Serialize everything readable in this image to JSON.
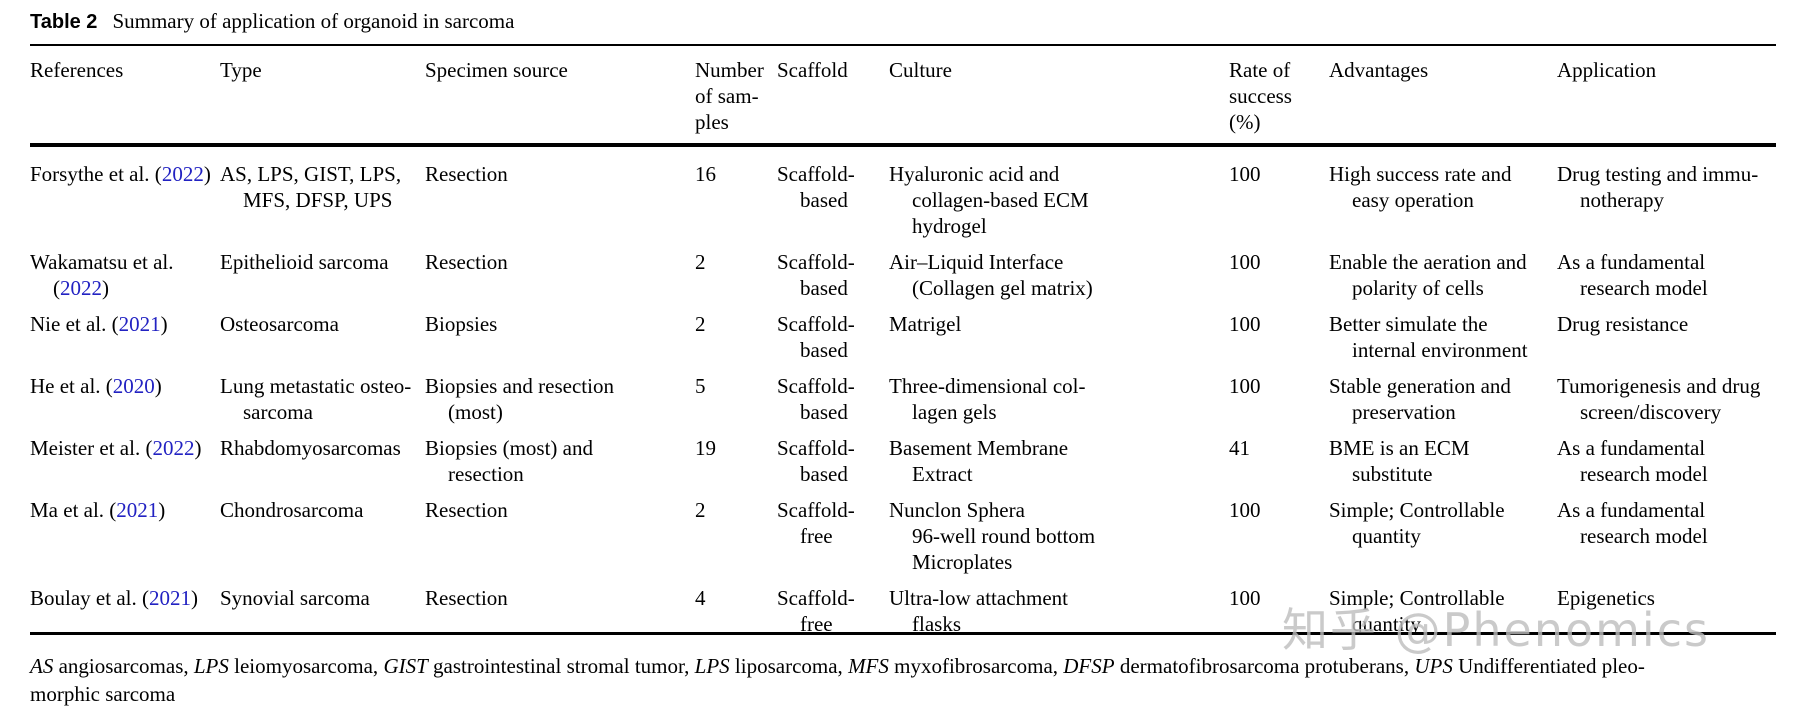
{
  "caption": {
    "label": "Table 2",
    "text": "Summary of application of organoid in sarcoma"
  },
  "colors": {
    "link_blue": "#2222c2",
    "text_black": "#000000",
    "watermark_gray": "#bdbdbd"
  },
  "columns": [
    "References",
    "Type",
    "Specimen source",
    "Number\nof sam-\nples",
    "Scaffold",
    "Culture",
    "Rate of\nsuccess\n(%)",
    "Advantages",
    "Application"
  ],
  "rows": [
    {
      "reference": {
        "before": "Forsythe et al. (",
        "year": "2022",
        "after": ")"
      },
      "type": "AS, LPS, GIST, LPS,\nMFS, DFSP, UPS",
      "specimen_source": "Resection",
      "number_of_samples": "16",
      "scaffold": "Scaffold-based",
      "culture": "Hyaluronic acid and\ncollagen-based ECM\nhydrogel",
      "rate_of_success": "100",
      "advantages": "High success rate and\neasy operation",
      "application": "Drug testing and immu-\nnotherapy"
    },
    {
      "reference": {
        "before": "Wakamatsu et al.\n(",
        "year": "2022",
        "after": ")"
      },
      "type": "Epithelioid sarcoma",
      "specimen_source": "Resection",
      "number_of_samples": "2",
      "scaffold": "Scaffold-based",
      "culture": "Air–Liquid Interface\n(Collagen gel matrix)",
      "rate_of_success": "100",
      "advantages": "Enable the aeration and\npolarity of cells",
      "application": "As a fundamental\nresearch model"
    },
    {
      "reference": {
        "before": "Nie et al. (",
        "year": "2021",
        "after": ")"
      },
      "type": "Osteosarcoma",
      "specimen_source": "Biopsies",
      "number_of_samples": "2",
      "scaffold": "Scaffold-based",
      "culture": "Matrigel",
      "rate_of_success": "100",
      "advantages": "Better simulate the\ninternal environment",
      "application": "Drug resistance"
    },
    {
      "reference": {
        "before": "He et al. (",
        "year": "2020",
        "after": ")"
      },
      "type": "Lung metastatic osteo-\nsarcoma",
      "specimen_source": "Biopsies and resection\n(most)",
      "number_of_samples": "5",
      "scaffold": "Scaffold-based",
      "culture": "Three-dimensional col-\nlagen gels",
      "rate_of_success": "100",
      "advantages": "Stable generation and\npreservation",
      "application": "Tumorigenesis and drug\nscreen/discovery"
    },
    {
      "reference": {
        "before": "Meister et al. (",
        "year": "2022",
        "after": ")"
      },
      "type": "Rhabdomyosarcomas",
      "specimen_source": "Biopsies (most) and\nresection",
      "number_of_samples": "19",
      "scaffold": "Scaffold-based",
      "culture": "Basement Membrane\nExtract",
      "rate_of_success": "41",
      "advantages": "BME is an ECM\nsubstitute",
      "application": "As a fundamental\nresearch model"
    },
    {
      "reference": {
        "before": "Ma et al. (",
        "year": "2021",
        "after": ")"
      },
      "type": "Chondrosarcoma",
      "specimen_source": "Resection",
      "number_of_samples": "2",
      "scaffold": "Scaffold-free",
      "culture": "Nunclon Sphera\n96-well round bottom\nMicroplates",
      "rate_of_success": "100",
      "advantages": "Simple; Controllable\nquantity",
      "application": "As a fundamental\nresearch model"
    },
    {
      "reference": {
        "before": "Boulay et al. (",
        "year": "2021",
        "after": ")"
      },
      "type": "Synovial sarcoma",
      "specimen_source": "Resection",
      "number_of_samples": "4",
      "scaffold": "Scaffold-free",
      "culture": "Ultra-low attachment\nflasks",
      "rate_of_success": "100",
      "advantages": "Simple; Controllable\nquantity",
      "application": "Epigenetics"
    }
  ],
  "footnote": {
    "segments": [
      {
        "italic": true,
        "text": "AS"
      },
      {
        "italic": false,
        "text": " angiosarcomas, "
      },
      {
        "italic": true,
        "text": "LPS"
      },
      {
        "italic": false,
        "text": " leiomyosarcoma, "
      },
      {
        "italic": true,
        "text": "GIST"
      },
      {
        "italic": false,
        "text": " gastrointestinal stromal tumor, "
      },
      {
        "italic": true,
        "text": "LPS"
      },
      {
        "italic": false,
        "text": " liposarcoma, "
      },
      {
        "italic": true,
        "text": "MFS"
      },
      {
        "italic": false,
        "text": " myxofibrosarcoma, "
      },
      {
        "italic": true,
        "text": "DFSP"
      },
      {
        "italic": false,
        "text": " dermatofibrosarcoma protuberans, "
      },
      {
        "italic": true,
        "text": "UPS"
      },
      {
        "italic": false,
        "text": " Undifferentiated pleo-\nmorphic sarcoma"
      }
    ]
  },
  "watermark": {
    "text": "知乎 @Phenomics"
  }
}
